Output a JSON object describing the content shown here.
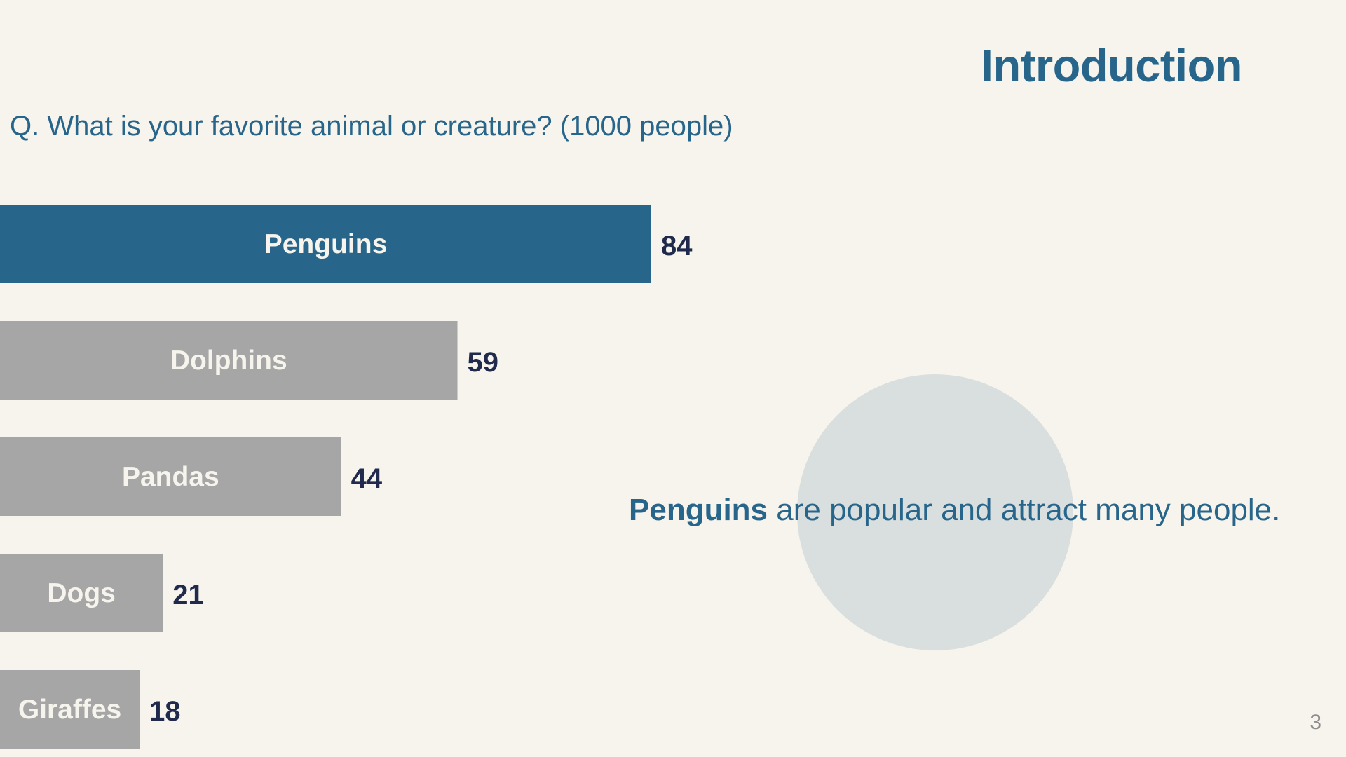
{
  "slide": {
    "title": "Introduction",
    "question": "Q. What is your favorite animal or creature? (1000 people)",
    "takeaway_bold": "Penguins",
    "takeaway_rest": " are popular and attract many people.",
    "page_number": "3"
  },
  "colors": {
    "highlight_bar": "#28658b",
    "other_bar": "#a6a6a6",
    "bar_label": "#f6f4ec",
    "value_label": "#1f2a4d",
    "accent_text": "#28658b"
  },
  "chart_data": {
    "type": "bar",
    "orientation": "horizontal",
    "title": "",
    "xlabel": "",
    "ylabel": "",
    "categories": [
      "Penguins",
      "Dolphins",
      "Pandas",
      "Dogs",
      "Giraffes"
    ],
    "values": [
      84,
      59,
      44,
      21,
      18
    ],
    "highlight": "Penguins",
    "grid": false,
    "legend": "none"
  }
}
